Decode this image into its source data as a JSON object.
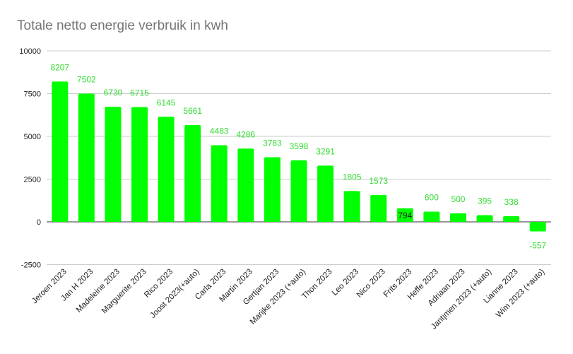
{
  "chart_data": {
    "type": "bar",
    "title": "Totale netto energie verbruik in kwh",
    "xlabel": "",
    "ylabel": "",
    "ylim": [
      -2500,
      10000
    ],
    "yticks": [
      -2500,
      0,
      2500,
      5000,
      7500,
      10000
    ],
    "grid": true,
    "legend": "none",
    "bar_color": "#00ff00",
    "label_color": "#33dd33",
    "categories": [
      "Jeroen 2023",
      "Jan H 2023",
      "Madeleine 2023",
      "Marguerite 2023",
      "Rico 2023",
      "Joost 2023(+auto)",
      "Carla 2023",
      "Martin 2023",
      "Gertjan 2023",
      "Marijke 2023 (+auto)",
      "Thon 2023",
      "Leo 2023",
      "Nico 2023",
      "Frits 2023",
      "Heffe 2023",
      "Adriaan 2023",
      "Jantjmen 2023 (+auto)",
      "Lianne 2023",
      "Wim 2023 (+auto)"
    ],
    "values": [
      8207,
      7502,
      6730,
      6715,
      6145,
      5661,
      4483,
      4286,
      3783,
      3598,
      3291,
      1805,
      1573,
      794,
      600,
      500,
      395,
      338,
      -557
    ]
  }
}
